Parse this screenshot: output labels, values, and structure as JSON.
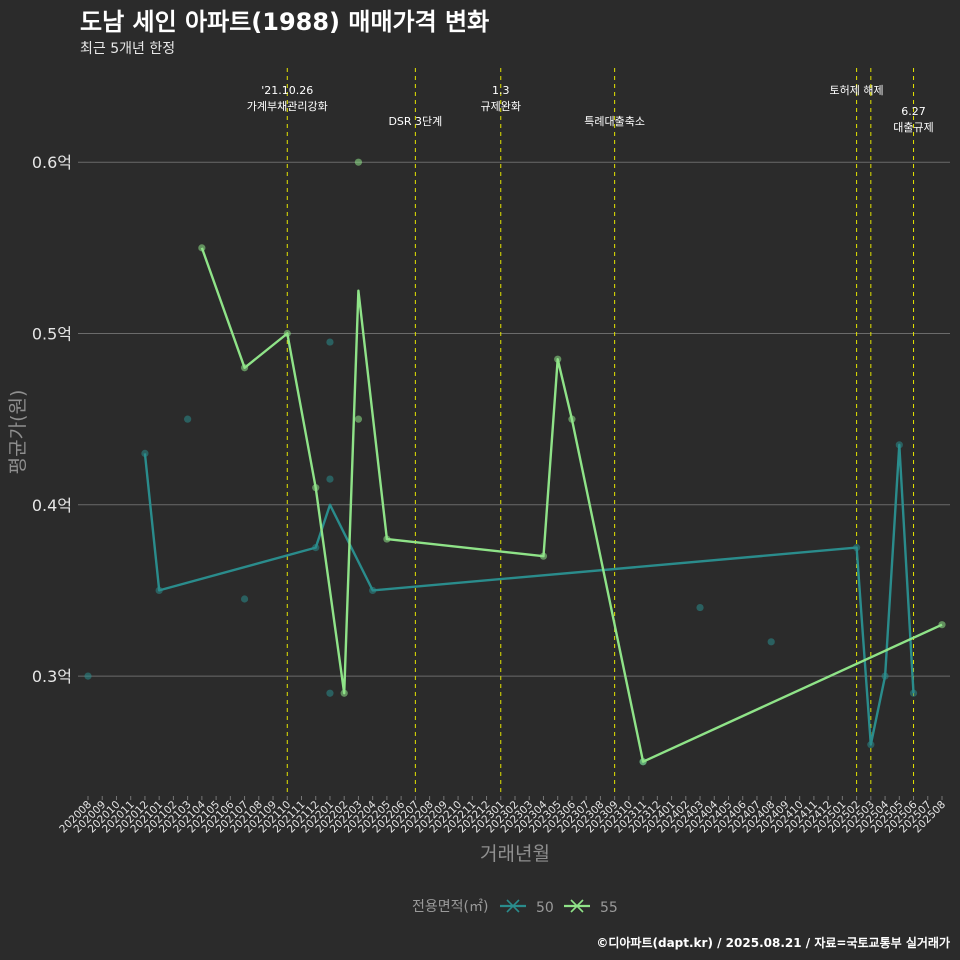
{
  "chart_data": {
    "type": "line",
    "title": "도남 세인 아파트(1988) 매매가격 변화",
    "subtitle": "최근 5개년 한정",
    "xlabel": "거래년월",
    "ylabel": "평균가(원)",
    "ylim": [
      0.23,
      0.655
    ],
    "y_ticks": [
      0.3,
      0.4,
      0.5,
      0.6
    ],
    "y_tick_labels": [
      "0.3억",
      "0.4억",
      "0.5억",
      "0.6억"
    ],
    "grid": "horizontal",
    "categories": [
      "202008",
      "202009",
      "202010",
      "202011",
      "202012",
      "202101",
      "202102",
      "202103",
      "202104",
      "202105",
      "202106",
      "202107",
      "202108",
      "202109",
      "202110",
      "202111",
      "202112",
      "202201",
      "202202",
      "202203",
      "202204",
      "202205",
      "202206",
      "202207",
      "202208",
      "202209",
      "202210",
      "202211",
      "202212",
      "202301",
      "202302",
      "202303",
      "202304",
      "202305",
      "202306",
      "202307",
      "202308",
      "202309",
      "202310",
      "202311",
      "202312",
      "202401",
      "202402",
      "202403",
      "202404",
      "202405",
      "202406",
      "202407",
      "202408",
      "202409",
      "202410",
      "202411",
      "202412",
      "202501",
      "202502",
      "202503",
      "202504",
      "202505",
      "202506",
      "202507",
      "202508"
    ],
    "legend": {
      "title": "전용면적(㎡)",
      "position": "bottom"
    },
    "series": [
      {
        "name": "50",
        "color": "#2a8c8c",
        "line": [
          [
            "202012",
            0.43
          ],
          [
            "202101",
            0.35
          ],
          [
            "202112",
            0.375
          ],
          [
            "202201",
            0.4
          ],
          [
            "202204",
            0.35
          ],
          [
            "202502",
            0.375
          ],
          [
            "202503",
            0.26
          ],
          [
            "202504",
            0.3
          ],
          [
            "202505",
            0.435
          ],
          [
            "202506",
            0.29
          ]
        ],
        "points": [
          [
            "202008",
            0.3
          ],
          [
            "202012",
            0.43
          ],
          [
            "202101",
            0.35
          ],
          [
            "202103",
            0.45
          ],
          [
            "202107",
            0.345
          ],
          [
            "202112",
            0.375
          ],
          [
            "202201",
            0.495
          ],
          [
            "202201",
            0.415
          ],
          [
            "202201",
            0.29
          ],
          [
            "202204",
            0.35
          ],
          [
            "202311",
            0.25
          ],
          [
            "202403",
            0.34
          ],
          [
            "202408",
            0.32
          ],
          [
            "202502",
            0.375
          ],
          [
            "202503",
            0.26
          ],
          [
            "202504",
            0.3
          ],
          [
            "202505",
            0.435
          ],
          [
            "202506",
            0.29
          ]
        ]
      },
      {
        "name": "55",
        "color": "#8fe388",
        "line": [
          [
            "202104",
            0.55
          ],
          [
            "202107",
            0.48
          ],
          [
            "202110",
            0.5
          ],
          [
            "202112",
            0.41
          ],
          [
            "202202",
            0.29
          ],
          [
            "202203",
            0.525
          ],
          [
            "202205",
            0.38
          ],
          [
            "202304",
            0.37
          ],
          [
            "202305",
            0.485
          ],
          [
            "202306",
            0.45
          ],
          [
            "202311",
            0.25
          ],
          [
            "202508",
            0.33
          ]
        ],
        "points": [
          [
            "202104",
            0.55
          ],
          [
            "202107",
            0.48
          ],
          [
            "202110",
            0.5
          ],
          [
            "202112",
            0.41
          ],
          [
            "202202",
            0.29
          ],
          [
            "202203",
            0.6
          ],
          [
            "202203",
            0.45
          ],
          [
            "202205",
            0.38
          ],
          [
            "202304",
            0.37
          ],
          [
            "202305",
            0.485
          ],
          [
            "202306",
            0.45
          ],
          [
            "202311",
            0.25
          ],
          [
            "202508",
            0.33
          ]
        ]
      }
    ],
    "events": [
      {
        "x": "202110",
        "lines": [
          "'21.10.26",
          "가계부채관리강화"
        ],
        "row": 1
      },
      {
        "x": "202207",
        "lines": [
          "DSR 3단계"
        ],
        "row": 2
      },
      {
        "x": "202301",
        "lines": [
          "1.3",
          "규제완화"
        ],
        "row": 1
      },
      {
        "x": "202309",
        "lines": [
          "특례대출축소"
        ],
        "row": 2
      },
      {
        "x": "202502",
        "lines": [
          "토허제 해제"
        ],
        "row": 1,
        "anchor": "end-ish"
      },
      {
        "x": "202503",
        "lines": [],
        "row": 1
      },
      {
        "x": "202506",
        "lines": [
          "6.27",
          "대출규제"
        ],
        "row": 3
      }
    ],
    "caption": "©디아파트(dapt.kr) / 2025.08.21 / 자료=국토교통부 실거래가"
  }
}
